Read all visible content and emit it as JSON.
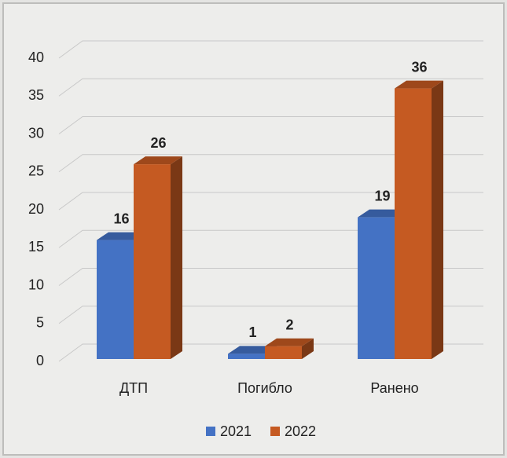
{
  "chart_data": {
    "type": "bar3d",
    "categories": [
      "ДТП",
      "Погибло",
      "Ранено"
    ],
    "series": [
      {
        "name": "2021",
        "color": "#4472c4",
        "values": [
          16,
          1,
          19
        ]
      },
      {
        "name": "2022",
        "color": "#c55a22",
        "values": [
          26,
          2,
          36
        ]
      }
    ],
    "ylim": [
      0,
      40
    ],
    "yticks": [
      0,
      5,
      10,
      15,
      20,
      25,
      30,
      35,
      40
    ],
    "grid": true,
    "legend": "bottom"
  }
}
